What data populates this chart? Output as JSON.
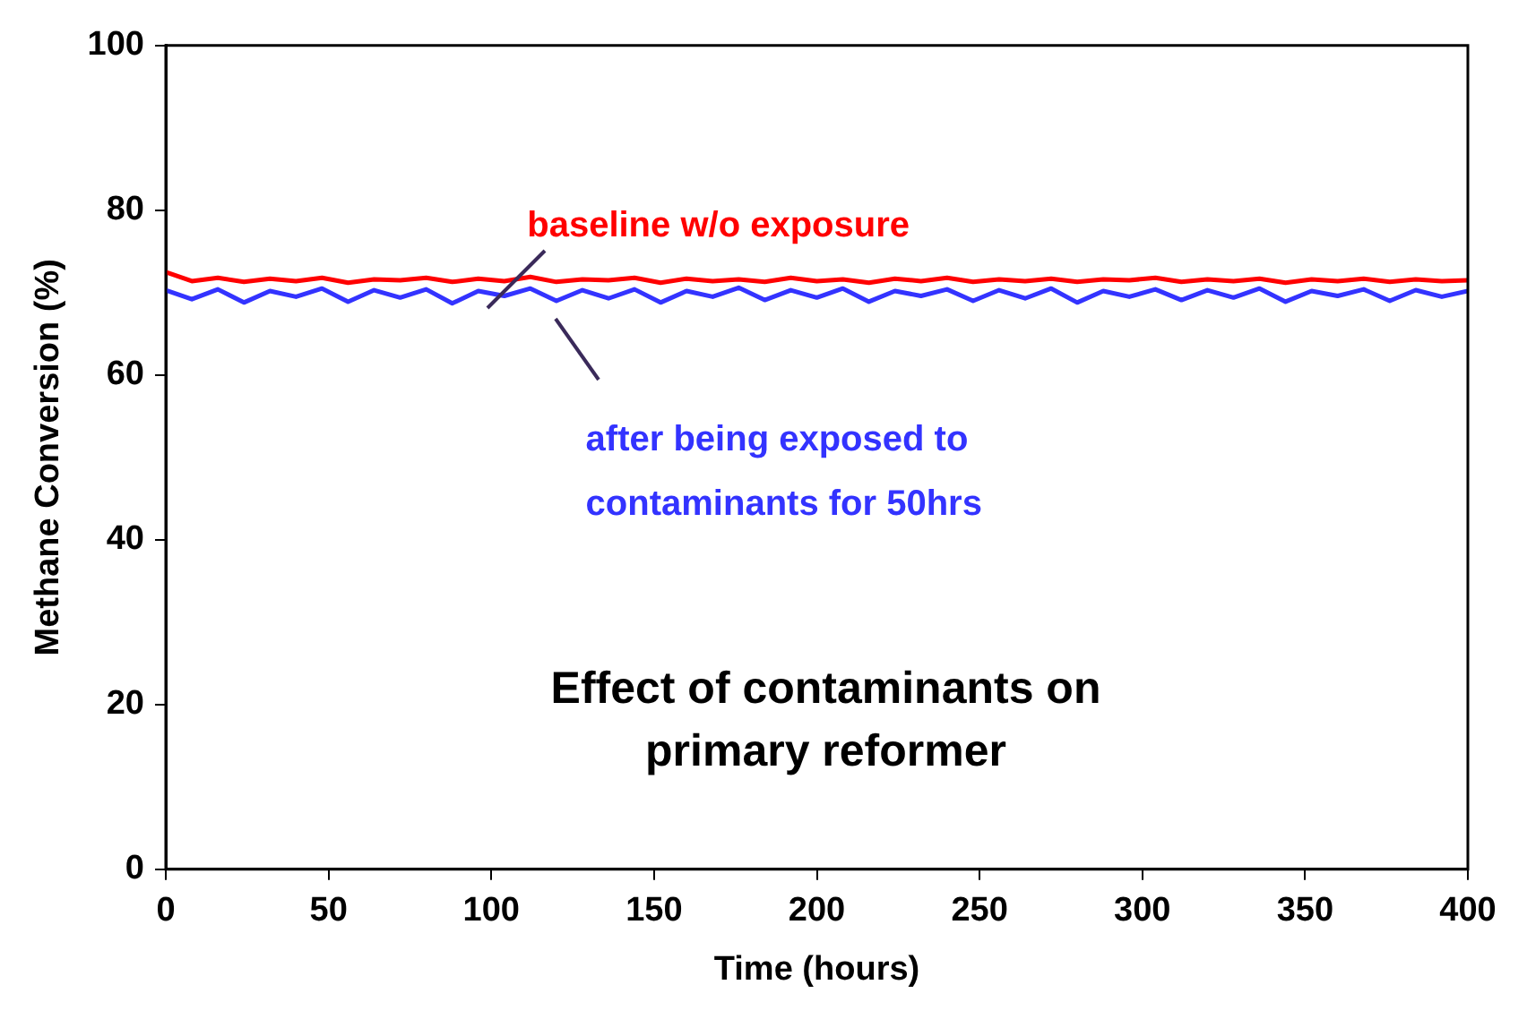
{
  "chart_data": {
    "type": "line",
    "title": "Effect of contaminants on primary reformer",
    "xlabel": "Time (hours)",
    "ylabel": "Methane Conversion (%)",
    "x": [
      0,
      8,
      16,
      24,
      32,
      40,
      48,
      56,
      64,
      72,
      80,
      88,
      96,
      104,
      112,
      120,
      128,
      136,
      144,
      152,
      160,
      168,
      176,
      184,
      192,
      200,
      208,
      216,
      224,
      232,
      240,
      248,
      256,
      264,
      272,
      280,
      288,
      296,
      304,
      312,
      320,
      328,
      336,
      344,
      352,
      360,
      368,
      376,
      384,
      392,
      400
    ],
    "series": [
      {
        "name": "baseline w/o exposure",
        "color": "#ff0000",
        "values": [
          72.5,
          71.4,
          71.8,
          71.3,
          71.7,
          71.4,
          71.8,
          71.2,
          71.6,
          71.5,
          71.8,
          71.3,
          71.7,
          71.4,
          71.9,
          71.3,
          71.6,
          71.5,
          71.8,
          71.2,
          71.7,
          71.4,
          71.6,
          71.3,
          71.8,
          71.4,
          71.6,
          71.2,
          71.7,
          71.4,
          71.8,
          71.3,
          71.6,
          71.4,
          71.7,
          71.3,
          71.6,
          71.5,
          71.8,
          71.3,
          71.6,
          71.4,
          71.7,
          71.2,
          71.6,
          71.4,
          71.7,
          71.3,
          71.6,
          71.4,
          71.5
        ]
      },
      {
        "name": "after being exposed to contaminants for 50hrs",
        "color": "#3333ff",
        "values": [
          70.3,
          69.2,
          70.4,
          68.8,
          70.2,
          69.5,
          70.5,
          68.9,
          70.3,
          69.4,
          70.4,
          68.7,
          70.2,
          69.6,
          70.5,
          69.0,
          70.3,
          69.3,
          70.4,
          68.8,
          70.2,
          69.5,
          70.6,
          69.1,
          70.3,
          69.4,
          70.5,
          68.9,
          70.2,
          69.6,
          70.4,
          69.0,
          70.3,
          69.3,
          70.5,
          68.8,
          70.2,
          69.5,
          70.4,
          69.1,
          70.3,
          69.4,
          70.5,
          68.9,
          70.2,
          69.6,
          70.4,
          69.0,
          70.3,
          69.5,
          70.2
        ]
      }
    ],
    "xlim": [
      0,
      400
    ],
    "xticks": [
      0,
      50,
      100,
      150,
      200,
      250,
      300,
      350,
      400
    ],
    "ylim": [
      0,
      100
    ],
    "yticks": [
      0,
      20,
      40,
      60,
      80,
      100
    ],
    "grid": false,
    "legend": false,
    "marker": "none",
    "line_style": "solid"
  }
}
